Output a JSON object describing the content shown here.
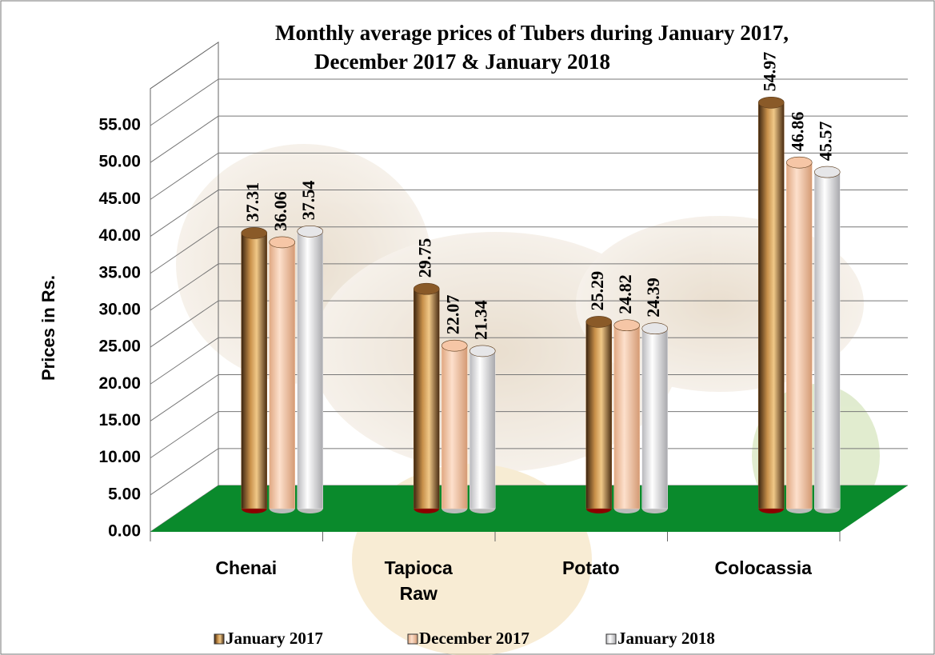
{
  "chart_data": {
    "type": "bar",
    "title": [
      "Monthly average prices of Tubers during  January 2017,",
      "December 2017 & January 2018"
    ],
    "y_label": "Prices in Rs.",
    "categories": [
      "Chenai",
      "Tapioca Raw",
      "Potato",
      "Colocassia"
    ],
    "series": [
      {
        "name": "January 2017",
        "color": "#8a5a28",
        "values": [
          37.31,
          29.75,
          25.29,
          54.97
        ]
      },
      {
        "name": "December 2017",
        "color": "#f6c6a6",
        "values": [
          36.06,
          22.07,
          24.82,
          46.86
        ]
      },
      {
        "name": "January 2018",
        "color": "#e6e6e8",
        "values": [
          37.54,
          21.34,
          24.39,
          45.57
        ]
      }
    ],
    "ylim": [
      0,
      60
    ],
    "yticks": [
      {
        "value": 0,
        "label": "0.00"
      },
      {
        "value": 5,
        "label": "5.00"
      },
      {
        "value": 10,
        "label": "10.00"
      },
      {
        "value": 15,
        "label": "15.00"
      },
      {
        "value": 20,
        "label": "20.00"
      },
      {
        "value": 25,
        "label": "25.00"
      },
      {
        "value": 30,
        "label": "30.00"
      },
      {
        "value": 35,
        "label": "35.00"
      },
      {
        "value": 40,
        "label": "40.00"
      },
      {
        "value": 45,
        "label": "45.00"
      },
      {
        "value": 50,
        "label": "50.00"
      },
      {
        "value": 55,
        "label": "55.00"
      }
    ],
    "grid": true,
    "legend": "bottom"
  }
}
